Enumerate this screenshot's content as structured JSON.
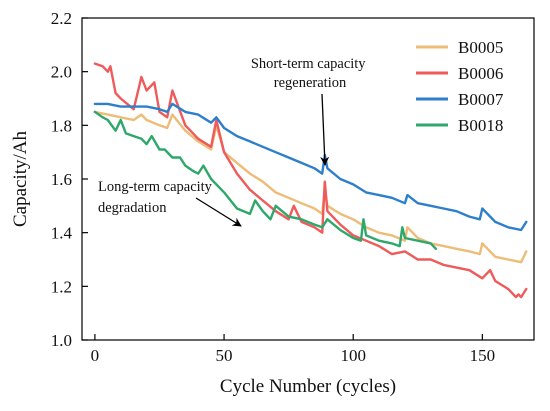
{
  "chart_data": {
    "type": "line",
    "xlabel": "Cycle Number (cycles)",
    "ylabel": "Capacity/Ah",
    "xlim": [
      -5,
      170
    ],
    "ylim": [
      1.0,
      2.2
    ],
    "xticks": [
      0,
      50,
      100,
      150
    ],
    "yticks": [
      1.0,
      1.2,
      1.4,
      1.6,
      1.8,
      2.0,
      2.2
    ],
    "legend_position": "top-right",
    "series": [
      {
        "name": "B0005",
        "color": "#EDBC78",
        "x": [
          0,
          5,
          10,
          15,
          18,
          20,
          25,
          28,
          30,
          35,
          40,
          45,
          47,
          50,
          55,
          60,
          65,
          70,
          75,
          80,
          85,
          88,
          89,
          90,
          95,
          100,
          105,
          110,
          115,
          120,
          121,
          125,
          130,
          135,
          140,
          145,
          149,
          150,
          155,
          160,
          165,
          167
        ],
        "y": [
          1.85,
          1.84,
          1.83,
          1.82,
          1.84,
          1.82,
          1.8,
          1.79,
          1.84,
          1.78,
          1.74,
          1.71,
          1.8,
          1.7,
          1.66,
          1.62,
          1.59,
          1.55,
          1.53,
          1.51,
          1.49,
          1.47,
          1.56,
          1.5,
          1.47,
          1.45,
          1.42,
          1.4,
          1.39,
          1.37,
          1.42,
          1.38,
          1.36,
          1.35,
          1.34,
          1.33,
          1.32,
          1.36,
          1.31,
          1.3,
          1.29,
          1.33
        ]
      },
      {
        "name": "B0006",
        "color": "#EF5A5A",
        "x": [
          0,
          3,
          5,
          6,
          8,
          10,
          15,
          18,
          20,
          23,
          25,
          28,
          30,
          35,
          40,
          45,
          47,
          50,
          55,
          60,
          65,
          70,
          75,
          77,
          80,
          85,
          88,
          89,
          90,
          95,
          100,
          105,
          110,
          115,
          120,
          125,
          130,
          135,
          140,
          145,
          150,
          153,
          155,
          160,
          163,
          164,
          165,
          167
        ],
        "y": [
          2.03,
          2.02,
          2.0,
          2.02,
          1.92,
          1.9,
          1.86,
          1.98,
          1.93,
          1.96,
          1.85,
          1.83,
          1.93,
          1.8,
          1.75,
          1.72,
          1.82,
          1.7,
          1.62,
          1.56,
          1.52,
          1.48,
          1.45,
          1.5,
          1.44,
          1.42,
          1.4,
          1.59,
          1.48,
          1.43,
          1.39,
          1.37,
          1.35,
          1.32,
          1.33,
          1.3,
          1.3,
          1.28,
          1.27,
          1.26,
          1.23,
          1.26,
          1.22,
          1.19,
          1.16,
          1.17,
          1.16,
          1.19
        ]
      },
      {
        "name": "B0007",
        "color": "#2E7FCB",
        "x": [
          0,
          5,
          10,
          15,
          20,
          25,
          28,
          30,
          35,
          40,
          45,
          47,
          50,
          55,
          60,
          65,
          70,
          75,
          80,
          85,
          88,
          89,
          90,
          95,
          100,
          105,
          110,
          115,
          120,
          121,
          125,
          130,
          135,
          140,
          145,
          149,
          150,
          155,
          160,
          165,
          167
        ],
        "y": [
          1.88,
          1.88,
          1.87,
          1.87,
          1.87,
          1.86,
          1.85,
          1.88,
          1.85,
          1.84,
          1.81,
          1.83,
          1.79,
          1.76,
          1.74,
          1.72,
          1.7,
          1.68,
          1.66,
          1.64,
          1.62,
          1.69,
          1.64,
          1.6,
          1.58,
          1.55,
          1.54,
          1.53,
          1.51,
          1.54,
          1.51,
          1.5,
          1.49,
          1.48,
          1.46,
          1.45,
          1.49,
          1.44,
          1.42,
          1.41,
          1.44
        ]
      },
      {
        "name": "B0018",
        "color": "#2EA86A",
        "x": [
          0,
          3,
          5,
          8,
          10,
          12,
          15,
          18,
          20,
          22,
          25,
          27,
          30,
          33,
          35,
          38,
          40,
          42,
          45,
          50,
          55,
          60,
          62,
          65,
          68,
          70,
          75,
          80,
          85,
          88,
          90,
          95,
          100,
          103,
          104,
          105,
          110,
          115,
          118,
          119,
          120,
          125,
          130,
          132
        ],
        "y": [
          1.85,
          1.83,
          1.82,
          1.78,
          1.82,
          1.77,
          1.76,
          1.75,
          1.73,
          1.76,
          1.71,
          1.71,
          1.68,
          1.68,
          1.65,
          1.63,
          1.62,
          1.65,
          1.6,
          1.55,
          1.49,
          1.47,
          1.52,
          1.48,
          1.45,
          1.5,
          1.46,
          1.45,
          1.43,
          1.42,
          1.45,
          1.41,
          1.38,
          1.37,
          1.45,
          1.39,
          1.37,
          1.36,
          1.35,
          1.42,
          1.38,
          1.37,
          1.36,
          1.34
        ]
      }
    ],
    "annotations": [
      {
        "lines": [
          "Short-term capacity",
          "regeneration"
        ],
        "points_to": [
          90,
          1.62
        ]
      },
      {
        "lines": [
          "Long-term capacity",
          "degradation"
        ],
        "points_to": [
          58,
          1.46
        ]
      }
    ]
  }
}
